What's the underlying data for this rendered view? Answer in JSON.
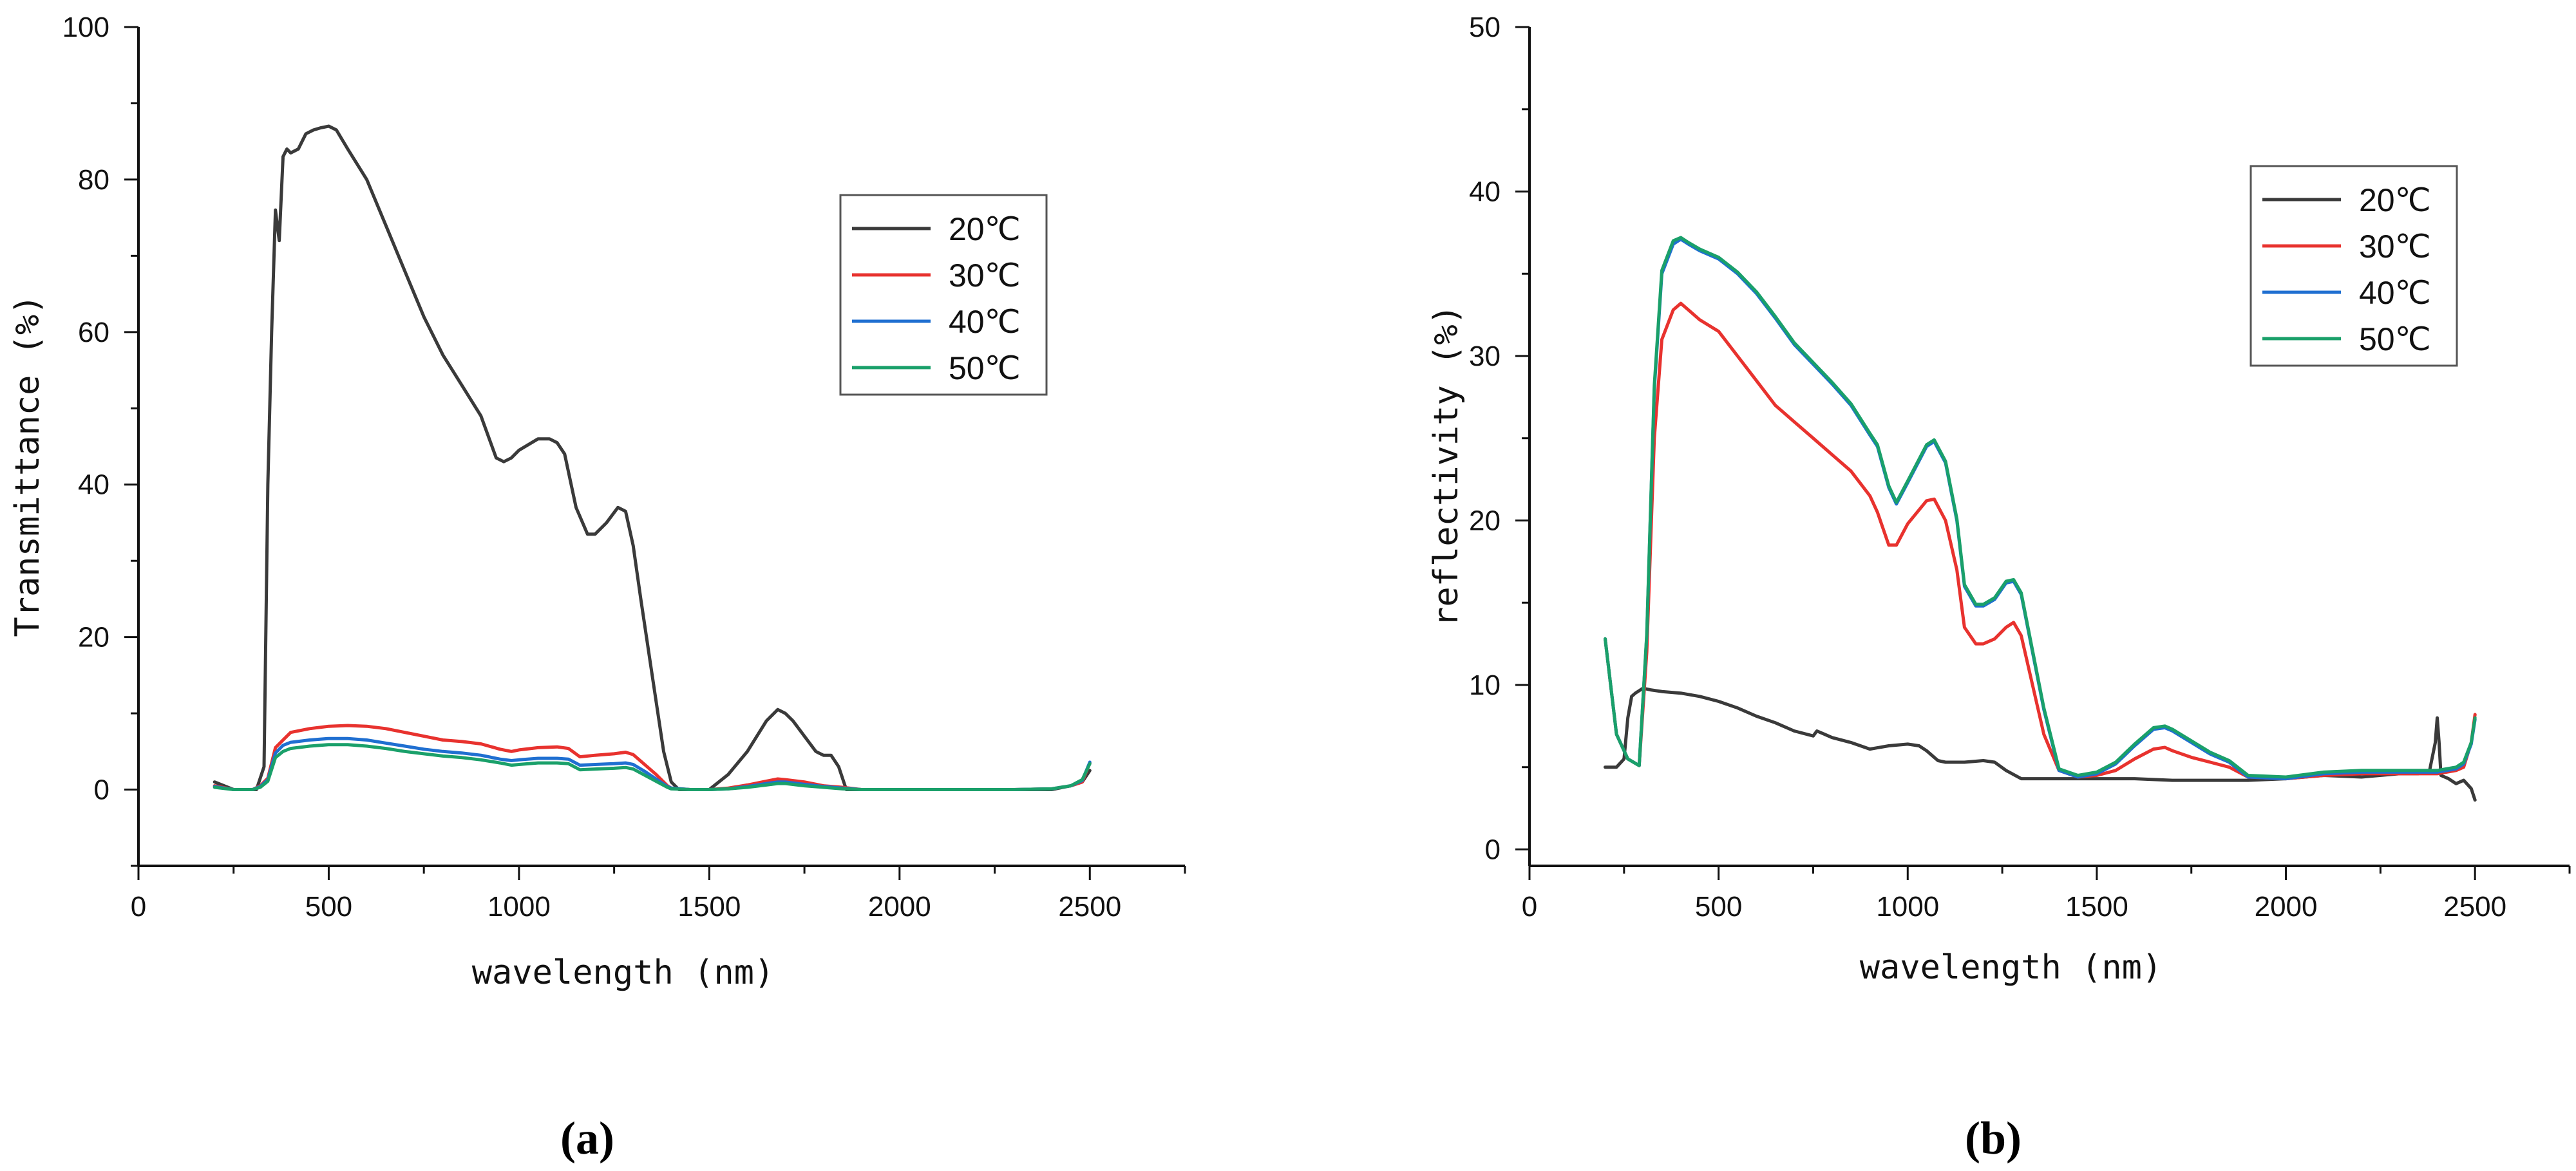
{
  "chart_data": [
    {
      "type": "line",
      "panel_label": "(a)",
      "xlabel": "wavelength (nm)",
      "ylabel": "Transmittance (%)",
      "xlim": [
        0,
        2750
      ],
      "ylim": [
        -10,
        100
      ],
      "xticks": [
        0,
        500,
        1000,
        1500,
        2000,
        2500
      ],
      "yticks": [
        0,
        20,
        40,
        60,
        80,
        100
      ],
      "legend_position": "top-right",
      "series": [
        {
          "name": "20℃",
          "color": "#3a3a3a",
          "x": [
            200,
            250,
            290,
            310,
            330,
            340,
            350,
            360,
            370,
            380,
            390,
            400,
            420,
            440,
            460,
            480,
            500,
            520,
            550,
            600,
            650,
            700,
            750,
            800,
            850,
            900,
            940,
            960,
            980,
            1000,
            1050,
            1080,
            1100,
            1120,
            1150,
            1180,
            1200,
            1230,
            1260,
            1280,
            1300,
            1320,
            1350,
            1380,
            1400,
            1420,
            1450,
            1500,
            1550,
            1600,
            1650,
            1680,
            1700,
            1720,
            1750,
            1780,
            1800,
            1820,
            1840,
            1860,
            1880,
            1900,
            2000,
            2100,
            2200,
            2300,
            2400,
            2450,
            2480,
            2500
          ],
          "y": [
            1,
            0,
            0,
            0,
            3,
            40,
            60,
            76,
            72,
            83,
            84,
            83.5,
            84,
            86,
            86.5,
            86.8,
            87,
            86.5,
            84,
            80,
            74,
            68,
            62,
            57,
            53,
            49,
            43.5,
            43,
            43.5,
            44.5,
            46,
            46,
            45.5,
            44,
            37,
            33.5,
            33.5,
            35,
            37,
            36.5,
            32,
            25,
            15,
            5,
            1,
            0,
            0,
            0,
            2,
            5,
            9,
            10.5,
            10,
            9,
            7,
            5,
            4.5,
            4.5,
            3,
            0,
            0,
            0,
            0,
            0,
            0,
            0,
            0,
            0.5,
            1,
            2.5
          ]
        },
        {
          "name": "30℃",
          "color": "#e8322e",
          "x": [
            200,
            250,
            300,
            320,
            340,
            360,
            380,
            400,
            450,
            500,
            550,
            600,
            650,
            700,
            750,
            800,
            850,
            900,
            950,
            980,
            1000,
            1050,
            1100,
            1130,
            1160,
            1200,
            1250,
            1280,
            1300,
            1330,
            1360,
            1390,
            1400,
            1450,
            1500,
            1550,
            1600,
            1650,
            1680,
            1700,
            1750,
            1800,
            1850,
            1900,
            2000,
            2100,
            2200,
            2300,
            2400,
            2450,
            2480,
            2500
          ],
          "y": [
            0.5,
            0,
            0,
            0.5,
            1.5,
            5.5,
            6.5,
            7.5,
            8,
            8.3,
            8.4,
            8.3,
            8,
            7.5,
            7,
            6.5,
            6.3,
            6,
            5.3,
            5,
            5.2,
            5.5,
            5.6,
            5.4,
            4.3,
            4.5,
            4.7,
            4.9,
            4.6,
            3.3,
            2,
            0.5,
            0.2,
            0,
            0,
            0.2,
            0.6,
            1.1,
            1.4,
            1.3,
            1,
            0.5,
            0.3,
            0,
            0,
            0,
            0,
            0,
            0.1,
            0.5,
            1,
            3.5
          ]
        },
        {
          "name": "40℃",
          "color": "#1f6fd1",
          "x": [
            200,
            250,
            300,
            320,
            340,
            360,
            380,
            400,
            450,
            500,
            550,
            600,
            650,
            700,
            750,
            800,
            850,
            900,
            950,
            980,
            1000,
            1050,
            1100,
            1130,
            1160,
            1200,
            1250,
            1280,
            1300,
            1330,
            1360,
            1390,
            1400,
            1450,
            1500,
            1550,
            1600,
            1650,
            1680,
            1700,
            1750,
            1800,
            1850,
            1900,
            2000,
            2100,
            2200,
            2300,
            2400,
            2450,
            2480,
            2500
          ],
          "y": [
            0.4,
            0,
            0,
            0.4,
            1.3,
            4.8,
            5.8,
            6.2,
            6.5,
            6.7,
            6.7,
            6.5,
            6.1,
            5.7,
            5.3,
            5,
            4.8,
            4.5,
            4,
            3.8,
            3.9,
            4.1,
            4.1,
            4,
            3.2,
            3.3,
            3.4,
            3.5,
            3.3,
            2.4,
            1.4,
            0.4,
            0.2,
            0,
            0,
            0.1,
            0.4,
            0.8,
            1,
            1,
            0.7,
            0.4,
            0.2,
            0,
            0,
            0,
            0,
            0,
            0.1,
            0.5,
            1.2,
            3.6
          ]
        },
        {
          "name": "50℃",
          "color": "#1aa06a",
          "x": [
            200,
            250,
            300,
            320,
            340,
            360,
            380,
            400,
            450,
            500,
            550,
            600,
            650,
            700,
            750,
            800,
            850,
            900,
            950,
            980,
            1000,
            1050,
            1100,
            1130,
            1160,
            1200,
            1250,
            1280,
            1300,
            1330,
            1360,
            1390,
            1400,
            1450,
            1500,
            1550,
            1600,
            1650,
            1680,
            1700,
            1750,
            1800,
            1850,
            1900,
            2000,
            2100,
            2200,
            2300,
            2400,
            2450,
            2480,
            2500
          ],
          "y": [
            0.3,
            0,
            0,
            0.3,
            1.1,
            4.2,
            5,
            5.4,
            5.7,
            5.9,
            5.9,
            5.7,
            5.4,
            5,
            4.7,
            4.4,
            4.2,
            3.9,
            3.5,
            3.2,
            3.3,
            3.5,
            3.5,
            3.4,
            2.6,
            2.7,
            2.8,
            2.9,
            2.7,
            1.9,
            1.1,
            0.3,
            0.1,
            0,
            0,
            0.1,
            0.3,
            0.6,
            0.8,
            0.8,
            0.5,
            0.3,
            0.1,
            0,
            0,
            0,
            0,
            0,
            0.1,
            0.5,
            1.3,
            3.4
          ]
        }
      ]
    },
    {
      "type": "line",
      "panel_label": "(b)",
      "xlabel": "wavelength (nm)",
      "ylabel": "reflectivity (%)",
      "xlim": [
        0,
        2750
      ],
      "ylim": [
        -1,
        50
      ],
      "xticks": [
        0,
        500,
        1000,
        1500,
        2000,
        2500
      ],
      "yticks": [
        0,
        10,
        20,
        30,
        40,
        50
      ],
      "legend_position": "top-right",
      "series": [
        {
          "name": "20℃",
          "color": "#3a3a3a",
          "x": [
            200,
            230,
            250,
            260,
            270,
            280,
            300,
            320,
            350,
            400,
            450,
            500,
            550,
            600,
            650,
            700,
            750,
            760,
            780,
            800,
            850,
            900,
            950,
            1000,
            1030,
            1050,
            1080,
            1100,
            1150,
            1200,
            1230,
            1260,
            1300,
            1350,
            1400,
            1500,
            1600,
            1700,
            1800,
            1900,
            2000,
            2100,
            2200,
            2300,
            2350,
            2380,
            2395,
            2400,
            2405,
            2410,
            2430,
            2450,
            2470,
            2490,
            2500
          ],
          "y": [
            5,
            5,
            5.5,
            8,
            9.3,
            9.5,
            9.8,
            9.7,
            9.6,
            9.5,
            9.3,
            9,
            8.6,
            8.1,
            7.7,
            7.2,
            6.9,
            7.2,
            7,
            6.8,
            6.5,
            6.1,
            6.3,
            6.4,
            6.3,
            6,
            5.4,
            5.3,
            5.3,
            5.4,
            5.3,
            4.8,
            4.3,
            4.3,
            4.3,
            4.3,
            4.3,
            4.2,
            4.2,
            4.2,
            4.3,
            4.5,
            4.4,
            4.6,
            4.6,
            4.8,
            6.5,
            8,
            6.5,
            4.5,
            4.3,
            4,
            4.2,
            3.7,
            3
          ]
        },
        {
          "name": "30℃",
          "color": "#e8322e",
          "x": [
            200,
            230,
            260,
            290,
            310,
            330,
            350,
            380,
            400,
            420,
            450,
            500,
            550,
            600,
            650,
            700,
            750,
            800,
            850,
            900,
            920,
            950,
            970,
            1000,
            1050,
            1070,
            1100,
            1130,
            1150,
            1180,
            1200,
            1230,
            1260,
            1280,
            1300,
            1330,
            1360,
            1400,
            1450,
            1500,
            1550,
            1600,
            1650,
            1680,
            1700,
            1750,
            1800,
            1850,
            1900,
            2000,
            2100,
            2200,
            2300,
            2400,
            2450,
            2470,
            2490,
            2500
          ],
          "y": [
            12.8,
            7,
            5.5,
            5.1,
            12,
            25,
            31,
            32.8,
            33.2,
            32.8,
            32.2,
            31.5,
            30,
            28.5,
            27,
            26,
            25,
            24,
            23,
            21.5,
            20.5,
            18.5,
            18.5,
            19.8,
            21.2,
            21.3,
            20,
            17,
            13.5,
            12.5,
            12.5,
            12.8,
            13.5,
            13.8,
            13,
            10,
            7,
            4.8,
            4.4,
            4.5,
            4.8,
            5.5,
            6.1,
            6.2,
            6,
            5.6,
            5.3,
            5,
            4.4,
            4.3,
            4.5,
            4.6,
            4.6,
            4.6,
            4.8,
            5,
            6.5,
            8.2
          ]
        },
        {
          "name": "40℃",
          "color": "#1f6fd1",
          "x": [
            200,
            230,
            260,
            290,
            310,
            330,
            350,
            380,
            400,
            420,
            450,
            500,
            550,
            600,
            650,
            700,
            750,
            800,
            850,
            900,
            920,
            950,
            970,
            1000,
            1050,
            1070,
            1100,
            1130,
            1150,
            1180,
            1200,
            1230,
            1260,
            1280,
            1300,
            1330,
            1360,
            1400,
            1450,
            1500,
            1550,
            1600,
            1650,
            1680,
            1700,
            1750,
            1800,
            1850,
            1900,
            2000,
            2100,
            2200,
            2300,
            2400,
            2450,
            2470,
            2490,
            2500
          ],
          "y": [
            12.8,
            7,
            5.5,
            5.1,
            13,
            28,
            35,
            36.8,
            37.1,
            36.8,
            36.4,
            35.9,
            35,
            33.8,
            32.3,
            30.7,
            29.5,
            28.3,
            27,
            25.2,
            24.5,
            22,
            21,
            22.3,
            24.5,
            24.8,
            23.5,
            20,
            16,
            14.8,
            14.8,
            15.2,
            16.2,
            16.3,
            15.5,
            12,
            8.5,
            4.8,
            4.4,
            4.6,
            5.2,
            6.3,
            7.3,
            7.4,
            7.2,
            6.5,
            5.8,
            5.3,
            4.4,
            4.3,
            4.6,
            4.7,
            4.7,
            4.7,
            4.9,
            5.2,
            6.4,
            7.9
          ]
        },
        {
          "name": "50℃",
          "color": "#1aa06a",
          "x": [
            200,
            230,
            260,
            290,
            310,
            330,
            350,
            380,
            400,
            420,
            450,
            500,
            550,
            600,
            650,
            700,
            750,
            800,
            850,
            900,
            920,
            950,
            970,
            1000,
            1050,
            1070,
            1100,
            1130,
            1150,
            1180,
            1200,
            1230,
            1260,
            1280,
            1300,
            1330,
            1360,
            1400,
            1450,
            1500,
            1550,
            1600,
            1650,
            1680,
            1700,
            1750,
            1800,
            1850,
            1900,
            2000,
            2100,
            2200,
            2300,
            2400,
            2450,
            2470,
            2490,
            2500
          ],
          "y": [
            12.8,
            7,
            5.5,
            5.1,
            13.1,
            28.2,
            35.2,
            37,
            37.2,
            36.9,
            36.5,
            36,
            35.1,
            33.9,
            32.4,
            30.8,
            29.6,
            28.4,
            27.1,
            25.3,
            24.6,
            22.1,
            21.1,
            22.4,
            24.6,
            24.9,
            23.6,
            20.1,
            16.1,
            14.9,
            14.9,
            15.3,
            16.3,
            16.4,
            15.6,
            12.1,
            8.6,
            4.9,
            4.5,
            4.7,
            5.3,
            6.4,
            7.4,
            7.5,
            7.3,
            6.6,
            5.9,
            5.4,
            4.5,
            4.4,
            4.7,
            4.8,
            4.8,
            4.8,
            5,
            5.3,
            6.5,
            8
          ]
        }
      ]
    }
  ]
}
